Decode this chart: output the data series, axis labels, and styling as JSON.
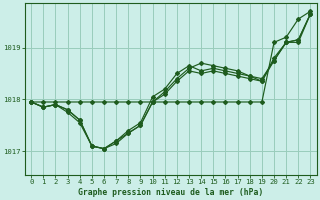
{
  "title": "Graphe pression niveau de la mer (hPa)",
  "bg_color": "#cceee8",
  "grid_color": "#99ccbb",
  "line_color": "#1e5c1e",
  "xlim": [
    -0.5,
    23.5
  ],
  "ylim": [
    1016.55,
    1019.85
  ],
  "yticks": [
    1017,
    1018,
    1019
  ],
  "xticks": [
    0,
    1,
    2,
    3,
    4,
    5,
    6,
    7,
    8,
    9,
    10,
    11,
    12,
    13,
    14,
    15,
    16,
    17,
    18,
    19,
    20,
    21,
    22,
    23
  ],
  "series": [
    [
      1017.95,
      1017.85,
      1017.9,
      1017.75,
      1017.55,
      1017.1,
      1017.05,
      1017.2,
      1017.4,
      1017.55,
      1018.05,
      1018.2,
      1018.5,
      1018.65,
      1018.55,
      1018.6,
      1018.55,
      1018.5,
      1018.45,
      1018.35,
      1018.8,
      1019.1,
      1019.15,
      1019.65
    ],
    [
      1017.95,
      1017.85,
      1017.9,
      1017.8,
      1017.6,
      1017.1,
      1017.05,
      1017.15,
      1017.35,
      1017.5,
      1017.95,
      1018.15,
      1018.4,
      1018.6,
      1018.7,
      1018.65,
      1018.6,
      1018.55,
      1018.45,
      1018.4,
      1018.75,
      1019.1,
      1019.15,
      1019.65
    ],
    [
      1017.95,
      1017.85,
      1017.9,
      1017.8,
      1017.6,
      1017.1,
      1017.05,
      1017.2,
      1017.35,
      1017.5,
      1017.95,
      1018.1,
      1018.35,
      1018.55,
      1018.5,
      1018.55,
      1018.5,
      1018.45,
      1018.4,
      1018.35,
      1018.75,
      1019.1,
      1019.1,
      1019.65
    ],
    [
      1017.95,
      1017.95,
      1017.95,
      1017.95,
      1017.95,
      1017.95,
      1017.95,
      1017.95,
      1017.95,
      1017.95,
      1017.95,
      1017.95,
      1017.95,
      1017.95,
      1017.95,
      1017.95,
      1017.95,
      1017.95,
      1017.95,
      1017.95,
      1019.1,
      1019.2,
      1019.55,
      1019.7
    ]
  ]
}
